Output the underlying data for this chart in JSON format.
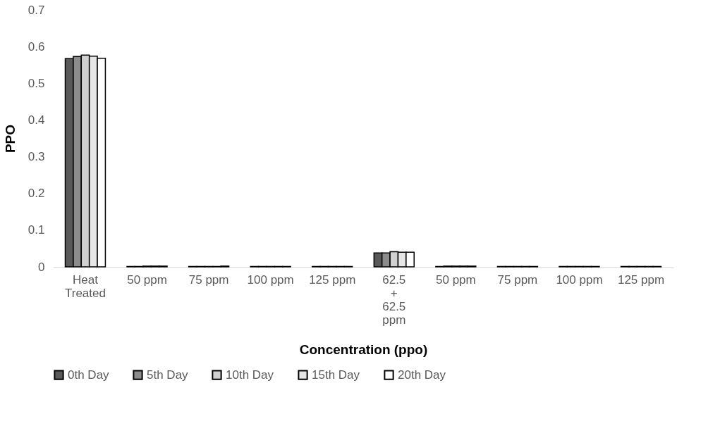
{
  "chart_data": {
    "type": "bar",
    "xlabel": "Concentration (ppo)",
    "ylabel": "PPO",
    "categories": [
      "Heat Treated",
      "50 ppm",
      "75 ppm",
      "100 ppm",
      "125 ppm",
      "62.5 + 62.5 ppm",
      "50 ppm",
      "75 ppm",
      "100 ppm",
      "125 ppm"
    ],
    "series": [
      {
        "name": "0th Day",
        "color": "#595959",
        "values": [
          0.567,
          0.001,
          0.001,
          0.001,
          0.001,
          0.038,
          0.001,
          0.001,
          0.001,
          0.001
        ]
      },
      {
        "name": "5th Day",
        "color": "#8c8c8c",
        "values": [
          0.573,
          0.001,
          0.001,
          0.001,
          0.001,
          0.038,
          0.002,
          0.001,
          0.001,
          0.001
        ]
      },
      {
        "name": "10th Day",
        "color": "#d0d0d0",
        "values": [
          0.577,
          0.002,
          0.001,
          0.001,
          0.001,
          0.041,
          0.002,
          0.001,
          0.001,
          0.001
        ]
      },
      {
        "name": "15th Day",
        "color": "#e6e6e6",
        "values": [
          0.574,
          0.002,
          0.001,
          0.001,
          0.001,
          0.04,
          0.002,
          0.001,
          0.001,
          0.001
        ]
      },
      {
        "name": "20th Day",
        "color": "#ffffff",
        "values": [
          0.568,
          0.002,
          0.002,
          0.001,
          0.001,
          0.04,
          0.002,
          0.001,
          0.001,
          0.001
        ]
      }
    ],
    "ylim": [
      0,
      0.7
    ],
    "yticks": [
      0,
      0.1,
      0.2,
      0.3,
      0.4,
      0.5,
      0.6,
      0.7
    ],
    "grid": false,
    "legend": "bottom"
  }
}
